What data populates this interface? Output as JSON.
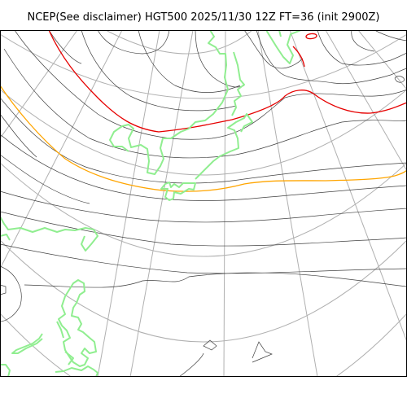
{
  "title": "NCEP(See disclaimer) HGT500 2025/11/30 12Z FT=36 (init 2900Z)",
  "colors": {
    "coastline": "#90ee90",
    "contour": "#404040",
    "graticule": "#b0b0b0",
    "contour_red": "#e60000",
    "contour_orange": "#ffa500",
    "frame": "#000000"
  },
  "map_features": [
    "500hPa-height-contours",
    "highlighted-red-contour",
    "highlighted-orange-contour",
    "coastlines",
    "lat-lon-graticule"
  ]
}
